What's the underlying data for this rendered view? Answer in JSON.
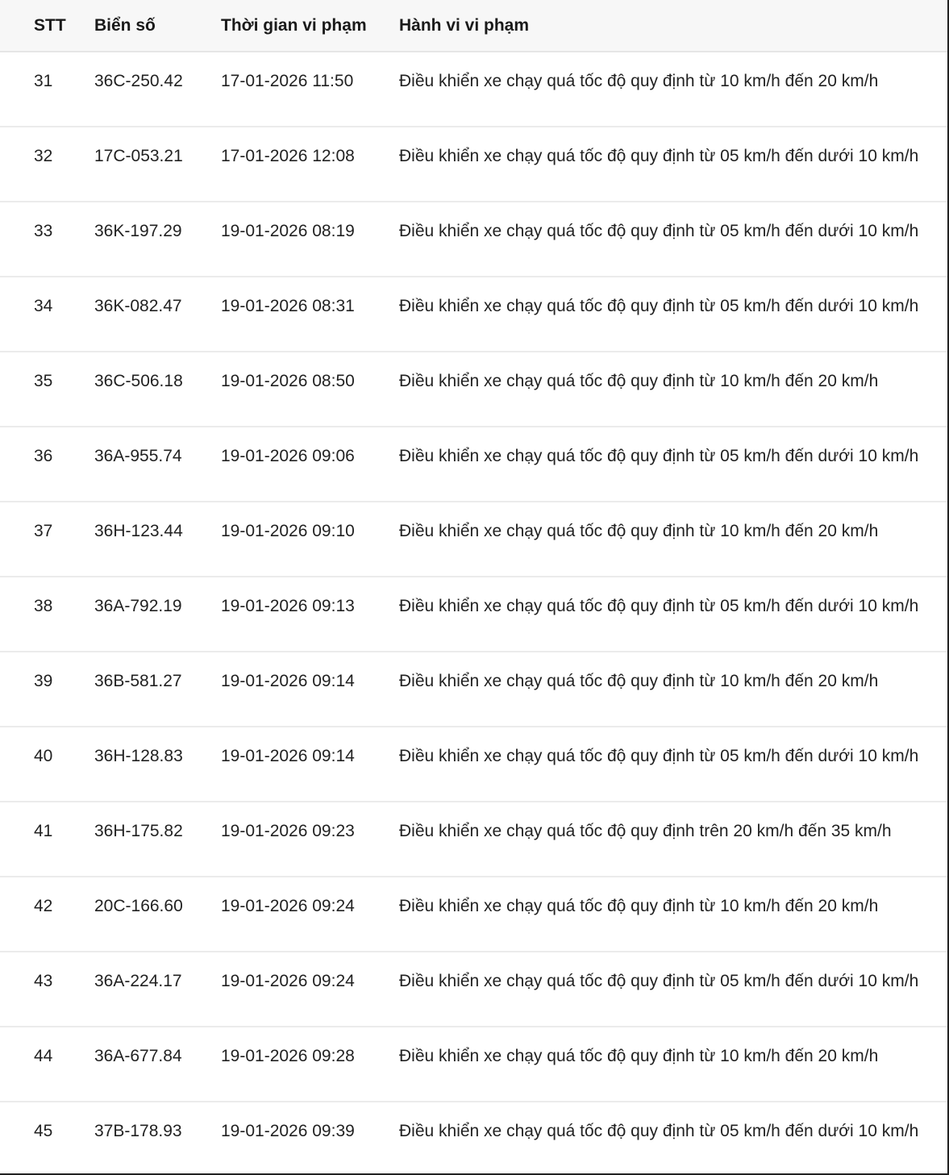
{
  "table": {
    "headers": [
      "STT",
      "Biển số",
      "Thời gian vi phạm",
      "Hành vi vi phạm"
    ],
    "rows": [
      [
        "31",
        "36C-250.42",
        "17-01-2026 11:50",
        "Điều khiển xe chạy quá tốc độ quy định từ 10 km/h đến 20 km/h"
      ],
      [
        "32",
        "17C-053.21",
        "17-01-2026 12:08",
        "Điều khiển xe chạy quá tốc độ quy định từ 05 km/h đến dưới 10 km/h"
      ],
      [
        "33",
        "36K-197.29",
        "19-01-2026 08:19",
        "Điều khiển xe chạy quá tốc độ quy định từ 05 km/h đến dưới 10 km/h"
      ],
      [
        "34",
        "36K-082.47",
        "19-01-2026 08:31",
        "Điều khiển xe chạy quá tốc độ quy định từ 05 km/h đến dưới 10 km/h"
      ],
      [
        "35",
        "36C-506.18",
        "19-01-2026 08:50",
        "Điều khiển xe chạy quá tốc độ quy định từ 10 km/h đến 20 km/h"
      ],
      [
        "36",
        "36A-955.74",
        "19-01-2026 09:06",
        "Điều khiển xe chạy quá tốc độ quy định từ 05 km/h đến dưới 10 km/h"
      ],
      [
        "37",
        "36H-123.44",
        "19-01-2026 09:10",
        "Điều khiển xe chạy quá tốc độ quy định từ 10 km/h đến 20 km/h"
      ],
      [
        "38",
        "36A-792.19",
        "19-01-2026 09:13",
        "Điều khiển xe chạy quá tốc độ quy định từ 05 km/h đến dưới 10 km/h"
      ],
      [
        "39",
        "36B-581.27",
        "19-01-2026 09:14",
        "Điều khiển xe chạy quá tốc độ quy định từ 10 km/h đến 20 km/h"
      ],
      [
        "40",
        "36H-128.83",
        "19-01-2026 09:14",
        "Điều khiển xe chạy quá tốc độ quy định từ 05 km/h đến dưới 10 km/h"
      ],
      [
        "41",
        "36H-175.82",
        "19-01-2026 09:23",
        "Điều khiển xe chạy quá tốc độ quy định trên 20 km/h đến 35 km/h"
      ],
      [
        "42",
        "20C-166.60",
        "19-01-2026 09:24",
        "Điều khiển xe chạy quá tốc độ quy định từ 10 km/h đến 20 km/h"
      ],
      [
        "43",
        "36A-224.17",
        "19-01-2026 09:24",
        "Điều khiển xe chạy quá tốc độ quy định từ 05 km/h đến dưới 10 km/h"
      ],
      [
        "44",
        "36A-677.84",
        "19-01-2026 09:28",
        "Điều khiển xe chạy quá tốc độ quy định từ 10 km/h đến 20 km/h"
      ],
      [
        "45",
        "37B-178.93",
        "19-01-2026 09:39",
        "Điều khiển xe chạy quá tốc độ quy định từ 05 km/h đến dưới 10 km/h"
      ]
    ]
  }
}
